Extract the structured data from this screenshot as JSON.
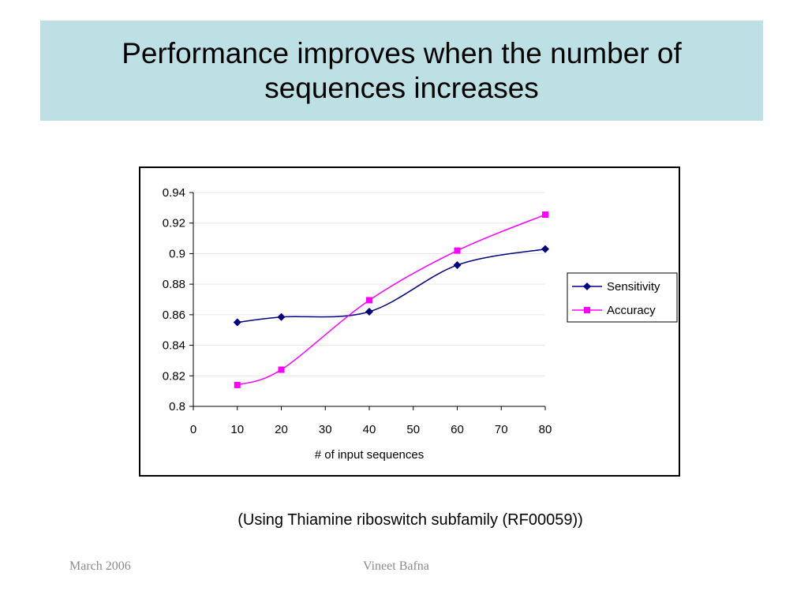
{
  "slide": {
    "title": "Performance improves when the number of sequences increases",
    "caption": "(Using Thiamine riboswitch subfamily (RF00059))",
    "footer_left": "March 2006",
    "footer_center": "Vineet Bafna"
  },
  "colors": {
    "title_band": "#bde0e4",
    "sensitivity": "#000080",
    "accuracy": "#ff00ff"
  },
  "chart_data": {
    "type": "line",
    "title": "",
    "xlabel": "# of input sequences",
    "ylabel": "",
    "xlim": [
      0,
      80
    ],
    "ylim": [
      0.8,
      0.94
    ],
    "x_ticks": [
      "0",
      "10",
      "20",
      "30",
      "40",
      "50",
      "60",
      "70",
      "80"
    ],
    "y_ticks": [
      "0.94",
      "0.92",
      "0.9",
      "0.88",
      "0.86",
      "0.84",
      "0.82",
      "0.8"
    ],
    "grid": true,
    "legend_position": "right",
    "x": [
      10,
      20,
      40,
      60,
      80
    ],
    "series": [
      {
        "name": "Sensitivity",
        "marker": "diamond",
        "values": [
          0.855,
          0.8585,
          0.862,
          0.8925,
          0.903
        ]
      },
      {
        "name": "Accuracy",
        "marker": "square",
        "values": [
          0.814,
          0.824,
          0.8695,
          0.902,
          0.9255
        ]
      }
    ]
  }
}
